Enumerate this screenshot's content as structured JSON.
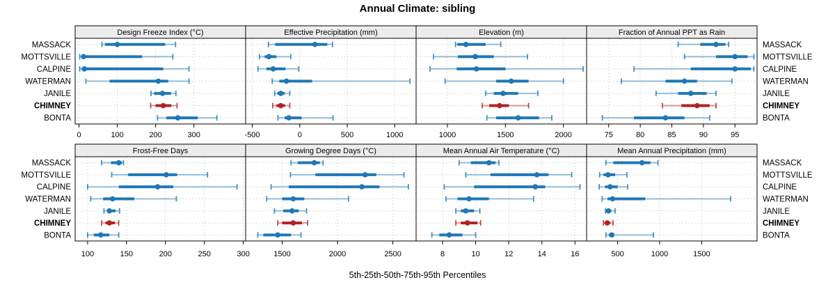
{
  "title": "Annual Climate: sibling",
  "footer_xlabel": "5th-25th-50th-75th-95th Percentiles",
  "stations": [
    "MASSACK",
    "MOTTSVILLE",
    "CALPINE",
    "WATERMAN",
    "JANILE",
    "CHIMNEY",
    "BONTA"
  ],
  "highlight_station": "CHIMNEY",
  "colors": {
    "series": "#1f77b4",
    "highlight": "#b22222",
    "grid": "#cfcfcf",
    "header_bg": "#ececec",
    "border": "#000000",
    "text": "#000000"
  },
  "chart_data": {
    "type": "scatter",
    "subtype": "percentile-dotplot-trellis",
    "percentiles": [
      "5th",
      "25th",
      "50th",
      "75th",
      "95th"
    ],
    "legend_note": "whisker = 5th-95th, thick band = 25th-75th, dot = median",
    "rows_order_top_to_bottom": [
      "MASSACK",
      "MOTTSVILLE",
      "CALPINE",
      "WATERMAN",
      "JANILE",
      "CHIMNEY",
      "BONTA"
    ],
    "panels": [
      {
        "title": "Design Freeze Index (°C)",
        "ticks": [
          0,
          100,
          200,
          300
        ],
        "xlim": [
          -10,
          435
        ],
        "values": [
          [
            60,
            68,
            100,
            225,
            252
          ],
          [
            2,
            6,
            12,
            165,
            245
          ],
          [
            2,
            7,
            14,
            220,
            287
          ],
          [
            18,
            80,
            207,
            233,
            287
          ],
          [
            188,
            196,
            218,
            240,
            253
          ],
          [
            187,
            200,
            220,
            241,
            256
          ],
          [
            205,
            228,
            258,
            310,
            360
          ]
        ]
      },
      {
        "title": "Effective Precipitation (mm)",
        "ticks": [
          -500,
          0,
          500,
          1000
        ],
        "xlim": [
          -570,
          1225
        ],
        "values": [
          [
            -330,
            -260,
            160,
            290,
            345
          ],
          [
            -425,
            -370,
            -325,
            -245,
            -95
          ],
          [
            -440,
            -350,
            -280,
            -150,
            -10
          ],
          [
            -290,
            -215,
            -140,
            130,
            1160
          ],
          [
            -265,
            -235,
            -200,
            -160,
            -105
          ],
          [
            -285,
            -245,
            -200,
            -155,
            -105
          ],
          [
            -230,
            -160,
            -115,
            20,
            350
          ]
        ]
      },
      {
        "title": "Elevation (m)",
        "ticks": [
          1000,
          1500,
          2000
        ],
        "xlim": [
          730,
          2200
        ],
        "values": [
          [
            1070,
            1085,
            1160,
            1330,
            1460
          ],
          [
            880,
            1090,
            1240,
            1400,
            1690
          ],
          [
            850,
            1080,
            1250,
            1500,
            2170
          ],
          [
            980,
            1420,
            1550,
            1700,
            2000
          ],
          [
            1330,
            1400,
            1480,
            1610,
            1780
          ],
          [
            1300,
            1360,
            1450,
            1530,
            1700
          ],
          [
            1340,
            1420,
            1610,
            1790,
            1900
          ]
        ]
      },
      {
        "title": "Fraction of Annual PPT as Rain",
        "ticks": [
          75,
          80,
          85,
          90,
          95
        ],
        "xlim": [
          71.5,
          98.5
        ],
        "values": [
          [
            86,
            89.5,
            92,
            93.5,
            94
          ],
          [
            87,
            92,
            95,
            97,
            98
          ],
          [
            79,
            88,
            95,
            97.5,
            98
          ],
          [
            77,
            84,
            87,
            89,
            94.5
          ],
          [
            82.5,
            86,
            88,
            90.5,
            92
          ],
          [
            83.5,
            86.5,
            89,
            91,
            92
          ],
          [
            74,
            79,
            84,
            87,
            91
          ]
        ]
      },
      {
        "title": "Frost-Free Days",
        "ticks": [
          100,
          150,
          200,
          250,
          300
        ],
        "xlim": [
          84,
          303
        ],
        "values": [
          [
            118,
            130,
            140,
            144,
            146
          ],
          [
            131,
            152,
            201,
            215,
            254
          ],
          [
            100,
            140,
            190,
            210,
            292
          ],
          [
            104,
            120,
            132,
            160,
            214
          ],
          [
            121,
            125,
            128,
            136,
            141
          ],
          [
            118,
            123,
            128,
            135,
            140
          ],
          [
            100,
            108,
            117,
            128,
            140
          ]
        ]
      },
      {
        "title": "Growing Degree Days (°C)",
        "ticks": [
          1500,
          2000,
          2500
        ],
        "xlim": [
          1170,
          2710
        ],
        "values": [
          [
            1580,
            1640,
            1790,
            1840,
            1870
          ],
          [
            1575,
            1800,
            2250,
            2350,
            2600
          ],
          [
            1400,
            1560,
            2220,
            2380,
            2640
          ],
          [
            1360,
            1500,
            1600,
            1700,
            2100
          ],
          [
            1430,
            1510,
            1590,
            1650,
            1720
          ],
          [
            1460,
            1500,
            1600,
            1680,
            1730
          ],
          [
            1280,
            1330,
            1460,
            1580,
            1670
          ]
        ]
      },
      {
        "title": "Mean Annual Air Temperature (°C)",
        "ticks": [
          8,
          10,
          12,
          14,
          16
        ],
        "xlim": [
          6.4,
          16.7
        ],
        "values": [
          [
            9.0,
            9.7,
            10.8,
            11.2,
            11.4
          ],
          [
            9.4,
            10.9,
            13.7,
            14.4,
            15.8
          ],
          [
            8.1,
            9.9,
            13.6,
            14.2,
            16.3
          ],
          [
            8.2,
            8.9,
            9.6,
            10.8,
            13.5
          ],
          [
            8.8,
            9.1,
            9.4,
            9.9,
            10.25
          ],
          [
            8.8,
            9.1,
            9.5,
            10.1,
            10.3
          ],
          [
            7.35,
            7.8,
            8.4,
            9.2,
            10.0
          ]
        ]
      },
      {
        "title": "Mean Annual Precipitation (mm)",
        "ticks": [
          500,
          1000,
          1500
        ],
        "xlim": [
          130,
          2160
        ],
        "values": [
          [
            360,
            450,
            790,
            890,
            980
          ],
          [
            285,
            330,
            385,
            470,
            610
          ],
          [
            280,
            350,
            410,
            500,
            620
          ],
          [
            315,
            380,
            440,
            830,
            1845
          ],
          [
            355,
            370,
            390,
            425,
            470
          ],
          [
            330,
            345,
            375,
            410,
            445
          ],
          [
            360,
            395,
            430,
            460,
            925
          ]
        ]
      }
    ]
  }
}
